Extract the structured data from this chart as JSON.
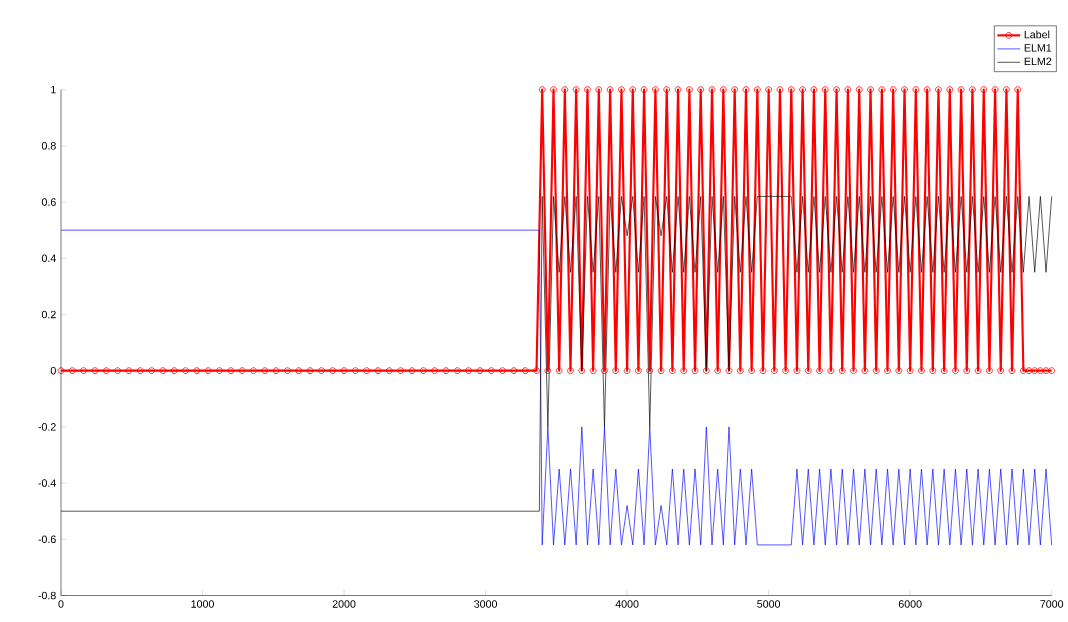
{
  "chart_data": {
    "type": "line",
    "xlim": [
      0,
      7000
    ],
    "ylim": [
      -0.8,
      1
    ],
    "xticks": [
      0,
      1000,
      2000,
      3000,
      4000,
      5000,
      6000,
      7000
    ],
    "yticks": [
      -0.8,
      -0.6,
      -0.4,
      -0.2,
      0,
      0.2,
      0.4,
      0.6,
      0.8,
      1
    ],
    "grid": false,
    "legend": "top right",
    "series": [
      {
        "name": "Label",
        "color": "#ff0000",
        "marker": "circle",
        "x": [
          0,
          80,
          160,
          240,
          320,
          400,
          480,
          560,
          640,
          720,
          800,
          880,
          960,
          1040,
          1120,
          1200,
          1280,
          1360,
          1440,
          1520,
          1600,
          1680,
          1760,
          1840,
          1920,
          2000,
          2080,
          2160,
          2240,
          2320,
          2400,
          2480,
          2560,
          2640,
          2720,
          2800,
          2880,
          2960,
          3040,
          3120,
          3200,
          3280,
          3360,
          3400,
          3440,
          3480,
          3520,
          3560,
          3600,
          3640,
          3680,
          3720,
          3760,
          3800,
          3840,
          3880,
          3920,
          3960,
          4000,
          4040,
          4080,
          4120,
          4160,
          4200,
          4240,
          4280,
          4320,
          4360,
          4400,
          4440,
          4480,
          4520,
          4560,
          4600,
          4640,
          4680,
          4720,
          4760,
          4800,
          4840,
          4880,
          4920,
          4960,
          5000,
          5040,
          5080,
          5120,
          5160,
          5200,
          5240,
          5280,
          5320,
          5360,
          5400,
          5440,
          5480,
          5520,
          5560,
          5600,
          5640,
          5680,
          5720,
          5760,
          5800,
          5840,
          5880,
          5920,
          5960,
          6000,
          6040,
          6080,
          6120,
          6160,
          6200,
          6240,
          6280,
          6320,
          6360,
          6400,
          6440,
          6480,
          6520,
          6560,
          6600,
          6640,
          6680,
          6720,
          6760,
          6800,
          6840,
          6880,
          6920,
          6960,
          7000
        ],
        "values": [
          0,
          0,
          0,
          0,
          0,
          0,
          0,
          0,
          0,
          0,
          0,
          0,
          0,
          0,
          0,
          0,
          0,
          0,
          0,
          0,
          0,
          0,
          0,
          0,
          0,
          0,
          0,
          0,
          0,
          0,
          0,
          0,
          0,
          0,
          0,
          0,
          0,
          0,
          0,
          0,
          0,
          0,
          0,
          1,
          0,
          1,
          0,
          1,
          0,
          1,
          0,
          1,
          0,
          1,
          0,
          1,
          0,
          1,
          0,
          1,
          0,
          1,
          0,
          1,
          0,
          1,
          0,
          1,
          0,
          1,
          0,
          1,
          0,
          1,
          0,
          1,
          0,
          1,
          0,
          1,
          0,
          1,
          0,
          1,
          0,
          1,
          0,
          1,
          0,
          1,
          0,
          1,
          0,
          1,
          0,
          1,
          0,
          1,
          0,
          1,
          0,
          1,
          0,
          1,
          0,
          1,
          0,
          1,
          0,
          1,
          0,
          1,
          0,
          1,
          0,
          1,
          0,
          1,
          0,
          1,
          0,
          1,
          0,
          1,
          0,
          1,
          0,
          1,
          0,
          0,
          0,
          0,
          0,
          0
        ]
      },
      {
        "name": "ELM1",
        "color": "#0000ff",
        "x": [
          0,
          3380,
          3400,
          3440,
          3480,
          3520,
          3560,
          3600,
          3640,
          3680,
          3720,
          3760,
          3800,
          3840,
          3880,
          3920,
          3960,
          4000,
          4040,
          4080,
          4120,
          4160,
          4200,
          4240,
          4280,
          4320,
          4360,
          4400,
          4440,
          4480,
          4520,
          4560,
          4600,
          4640,
          4680,
          4720,
          4760,
          4800,
          4840,
          4880,
          4920,
          5160,
          5200,
          5240,
          5280,
          5320,
          5360,
          5400,
          5440,
          5480,
          5520,
          5560,
          5600,
          5640,
          5680,
          5720,
          5760,
          5800,
          5840,
          5880,
          5920,
          5960,
          6000,
          6040,
          6080,
          6120,
          6160,
          6200,
          6240,
          6280,
          6320,
          6360,
          6400,
          6440,
          6480,
          6520,
          6560,
          6600,
          6640,
          6680,
          6720,
          6760,
          6800,
          6840,
          6880,
          6920,
          6960,
          7000
        ],
        "values": [
          0.5,
          0.5,
          -0.62,
          -0.2,
          -0.62,
          -0.35,
          -0.62,
          -0.35,
          -0.62,
          -0.2,
          -0.62,
          -0.35,
          -0.62,
          -0.2,
          -0.62,
          -0.35,
          -0.62,
          -0.48,
          -0.62,
          -0.35,
          -0.62,
          -0.2,
          -0.62,
          -0.48,
          -0.62,
          -0.35,
          -0.62,
          -0.35,
          -0.62,
          -0.35,
          -0.62,
          -0.2,
          -0.62,
          -0.35,
          -0.62,
          -0.2,
          -0.62,
          -0.35,
          -0.62,
          -0.35,
          -0.62,
          -0.62,
          -0.35,
          -0.62,
          -0.35,
          -0.62,
          -0.35,
          -0.62,
          -0.35,
          -0.62,
          -0.35,
          -0.62,
          -0.35,
          -0.62,
          -0.35,
          -0.62,
          -0.35,
          -0.62,
          -0.35,
          -0.62,
          -0.35,
          -0.62,
          -0.35,
          -0.62,
          -0.35,
          -0.62,
          -0.35,
          -0.62,
          -0.35,
          -0.62,
          -0.35,
          -0.62,
          -0.35,
          -0.62,
          -0.35,
          -0.62,
          -0.35,
          -0.62,
          -0.35,
          -0.62,
          -0.35,
          -0.62,
          -0.35,
          -0.62,
          -0.35,
          -0.62,
          -0.35,
          -0.62
        ]
      },
      {
        "name": "ELM2",
        "color": "#000000",
        "x": [
          0,
          3380,
          3400,
          3440,
          3480,
          3520,
          3560,
          3600,
          3640,
          3680,
          3720,
          3760,
          3800,
          3840,
          3880,
          3920,
          3960,
          4000,
          4040,
          4080,
          4120,
          4160,
          4200,
          4240,
          4280,
          4320,
          4360,
          4400,
          4440,
          4480,
          4520,
          4560,
          4600,
          4640,
          4680,
          4720,
          4760,
          4800,
          4840,
          4880,
          4920,
          5160,
          5200,
          5240,
          5280,
          5320,
          5360,
          5400,
          5440,
          5480,
          5520,
          5560,
          5600,
          5640,
          5680,
          5720,
          5760,
          5800,
          5840,
          5880,
          5920,
          5960,
          6000,
          6040,
          6080,
          6120,
          6160,
          6200,
          6240,
          6280,
          6320,
          6360,
          6400,
          6440,
          6480,
          6520,
          6560,
          6600,
          6640,
          6680,
          6720,
          6760,
          6800,
          6840,
          6880,
          6920,
          6960,
          7000
        ],
        "values": [
          -0.5,
          -0.5,
          0.62,
          -0.2,
          0.62,
          0.35,
          0.62,
          0.35,
          0.62,
          0,
          0.62,
          0.35,
          0.62,
          -0.2,
          0.62,
          0.35,
          0.62,
          0.48,
          0.62,
          0.35,
          0.62,
          -0.2,
          0.62,
          0.48,
          0.62,
          0.35,
          0.62,
          0.35,
          0.62,
          0.35,
          0.62,
          0,
          0.62,
          0.35,
          0.62,
          0,
          0.62,
          0.35,
          0.62,
          0.35,
          0.62,
          0.62,
          0.35,
          0.62,
          0.35,
          0.62,
          0.35,
          0.62,
          0.35,
          0.62,
          0.35,
          0.62,
          0.35,
          0.62,
          0.35,
          0.62,
          0.35,
          0.62,
          0.35,
          0.62,
          0.35,
          0.62,
          0.35,
          0.62,
          0.35,
          0.62,
          0.35,
          0.62,
          0.35,
          0.62,
          0.35,
          0.62,
          0.35,
          0.62,
          0.35,
          0.62,
          0.35,
          0.62,
          0.35,
          0.62,
          0.35,
          0.62,
          0.35,
          0.62,
          0.35,
          0.62,
          0.35,
          0.62
        ]
      }
    ]
  }
}
